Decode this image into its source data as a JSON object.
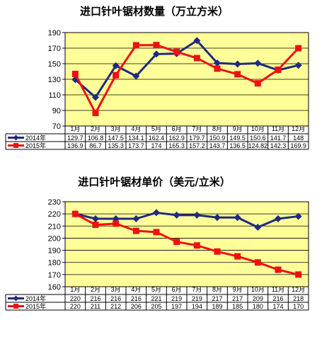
{
  "colors": {
    "plot_bg": "#FFFF99",
    "series_2014": "#1F2A80",
    "series_2015": "#EE1111",
    "grid": "#000000"
  },
  "chart_data": [
    {
      "type": "line",
      "title": "进口针叶锯材数量（万立方米）",
      "categories": [
        "1月",
        "2月",
        "3月",
        "4月",
        "5月",
        "6月",
        "7月",
        "8月",
        "9月",
        "10月",
        "11月",
        "12月"
      ],
      "ylim": [
        70,
        190
      ],
      "yticks": [
        70,
        90,
        110,
        130,
        150,
        170,
        190
      ],
      "grid": true,
      "legend": "table-bottom",
      "series": [
        {
          "name": "2014年",
          "marker": "diamond",
          "values": [
            129.7,
            106.8,
            147.5,
            134.1,
            162.4,
            162.9,
            179.7,
            150.9,
            149.5,
            150.6,
            141.7,
            148
          ],
          "labels": [
            "129.7",
            "106.8",
            "147.5",
            "134.1",
            "162.4",
            "162.9",
            "179.7",
            "150.9",
            "149.5",
            "150.6",
            "141.7",
            "148"
          ]
        },
        {
          "name": "2015年",
          "marker": "square",
          "values": [
            136.9,
            86.7,
            135.3,
            173.7,
            174,
            165.3,
            157.2,
            143.7,
            136.5,
            124.82,
            142.3,
            169.9
          ],
          "labels": [
            "136.9",
            "86.7",
            "135.3",
            "173.7",
            "174",
            "165.3",
            "157.2",
            "143.7",
            "136.5",
            "124.82",
            "142.3",
            "169.9"
          ]
        }
      ]
    },
    {
      "type": "line",
      "title": "进口针叶锯材单价（美元/立米）",
      "categories": [
        "1月",
        "2月",
        "3月",
        "4月",
        "5月",
        "6月",
        "7月",
        "8月",
        "9月",
        "10月",
        "11月",
        "12月"
      ],
      "ylim": [
        160,
        230
      ],
      "yticks": [
        160,
        170,
        180,
        190,
        200,
        210,
        220,
        230
      ],
      "grid": true,
      "legend": "table-bottom",
      "series": [
        {
          "name": "2014年",
          "marker": "diamond",
          "values": [
            220,
            216,
            216,
            216,
            221,
            219,
            219,
            217,
            217,
            209,
            216,
            218
          ],
          "labels": [
            "220",
            "216",
            "216",
            "216",
            "221",
            "219",
            "219",
            "217",
            "217",
            "209",
            "216",
            "218"
          ]
        },
        {
          "name": "2015年",
          "marker": "square",
          "values": [
            220,
            211,
            212,
            206,
            205,
            197,
            194,
            189,
            185,
            180,
            174,
            170
          ],
          "labels": [
            "220",
            "211",
            "212",
            "206",
            "205",
            "197",
            "194",
            "189",
            "185",
            "180",
            "174",
            "170"
          ]
        }
      ]
    }
  ]
}
